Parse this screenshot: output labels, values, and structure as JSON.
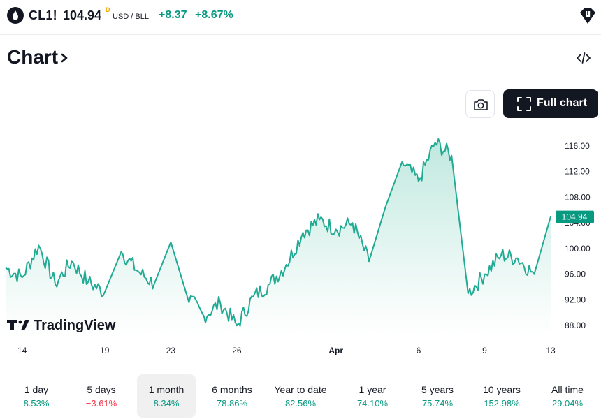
{
  "header": {
    "symbol": "CL1!",
    "price": "104.94",
    "price_flag": "D",
    "currency": "USD / BLL",
    "change_abs": "+8.37",
    "change_pct": "+8.67%",
    "symbol_icon": "oil-drop-icon",
    "alert_icon": "price-alert-icon"
  },
  "section": {
    "title": "Chart",
    "title_icon": "chevron-right-icon",
    "embed_icon": "code-embed-icon"
  },
  "toolbar": {
    "snapshot_icon": "camera-icon",
    "full_chart_label": "Full chart",
    "full_chart_icon": "fullscreen-icon"
  },
  "watermark": "TradingView",
  "colors": {
    "up": "#089981",
    "down": "#f23645",
    "line": "#22ab94",
    "fill_top": "#c8ebe3",
    "dark": "#131722"
  },
  "chart_data": {
    "type": "area",
    "series": [
      {
        "x": [
          "Mar 13",
          "Mar 14",
          "Mar 15",
          "Mar 16",
          "Mar 17",
          "Mar 18",
          "Mar 19",
          "Mar 20",
          "Mar 21",
          "Mar 22",
          "Mar 23",
          "Mar 23",
          "Mar 24",
          "Mar 25",
          "Mar 26",
          "Mar 27",
          "Mar 28",
          "Mar 29",
          "Mar 30",
          "Mar 31",
          "Apr 1",
          "Apr 2",
          "Apr 3",
          "Apr 4",
          "Apr 5",
          "Apr 6",
          "Apr 7",
          "Apr 8",
          "Apr 8",
          "Apr 9",
          "Apr 10",
          "Apr 11",
          "Apr 12",
          "Apr 13"
        ],
        "values": [
          97.0,
          95.5,
          100.5,
          94.5,
          98.0,
          94.8,
          93.2,
          99.5,
          96.5,
          94.5,
          101.0,
          92.5,
          89.5,
          91.5,
          88.0,
          92.5,
          94.5,
          97.5,
          102.5,
          104.5,
          103.0,
          104.0,
          98.0,
          106.5,
          113.5,
          110.5,
          116.5,
          114.5,
          93.0,
          96.0,
          99.0,
          98.5,
          96.0,
          105.0
        ]
      }
    ],
    "x_ticks": [
      "14",
      "19",
      "23",
      "26",
      "Apr",
      "6",
      "9",
      "13"
    ],
    "y_ticks": [
      "116.00",
      "112.00",
      "108.00",
      "104.00",
      "100.00",
      "96.00",
      "92.00",
      "88.00"
    ],
    "ylim": [
      86.5,
      118.5
    ],
    "last_value_label": "104.94",
    "grid": false
  },
  "periods": [
    {
      "label": "1 day",
      "value": "8.53%",
      "dir": "up"
    },
    {
      "label": "5 days",
      "value": "−3.61%",
      "dir": "down"
    },
    {
      "label": "1 month",
      "value": "8.34%",
      "dir": "up",
      "active": true
    },
    {
      "label": "6 months",
      "value": "78.86%",
      "dir": "up"
    },
    {
      "label": "Year to date",
      "value": "82.56%",
      "dir": "up"
    },
    {
      "label": "1 year",
      "value": "74.10%",
      "dir": "up"
    },
    {
      "label": "5 years",
      "value": "75.74%",
      "dir": "up"
    },
    {
      "label": "10 years",
      "value": "152.98%",
      "dir": "up"
    },
    {
      "label": "All time",
      "value": "29.04%",
      "dir": "up"
    }
  ]
}
